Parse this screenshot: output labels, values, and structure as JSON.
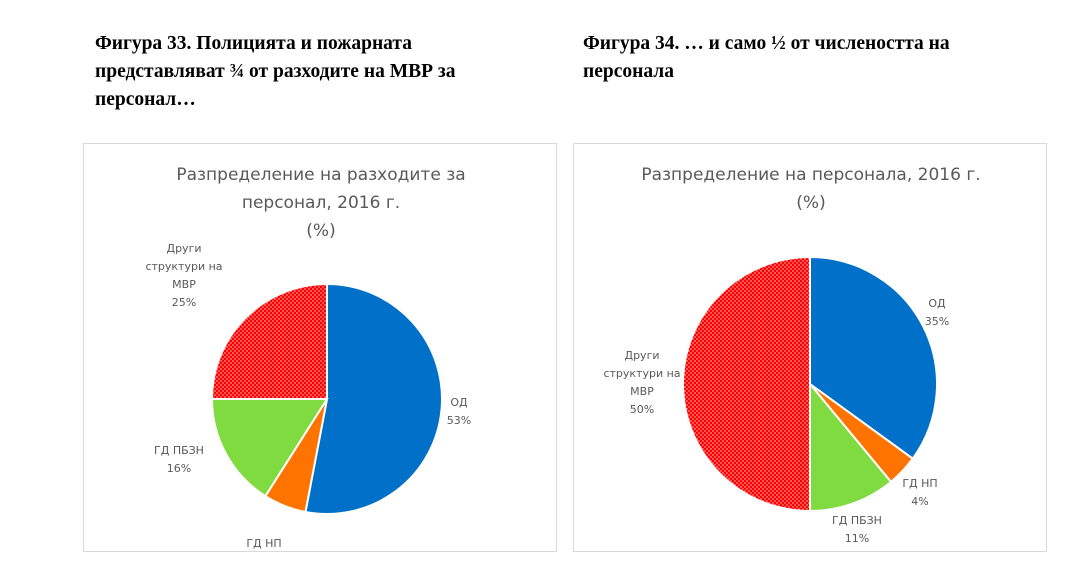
{
  "figures": [
    {
      "heading_lines": [
        "Фигура 33. Полицията и пожарната",
        "представляват ¾ от разходите на МВР за",
        "персонал…"
      ]
    },
    {
      "heading_lines": [
        "Фигура 34. … и само ½ от числеността на",
        "персонала"
      ]
    }
  ],
  "chart_data": [
    {
      "type": "pie",
      "title_lines": [
        "Разпределение на разходите за",
        "персонал, 2016 г.",
        "(%)"
      ],
      "unit": "%",
      "slices": [
        {
          "label_lines": [
            "ОД"
          ],
          "value": 53,
          "value_label": "53%",
          "color": "#0070C8"
        },
        {
          "label_lines": [
            "ГД НП"
          ],
          "value": 6,
          "value_label": "6%",
          "color": "#FF7300"
        },
        {
          "label_lines": [
            "ГД ПБЗН"
          ],
          "value": 16,
          "value_label": "16%",
          "color": "#7FDB40"
        },
        {
          "label_lines": [
            "Други",
            "структури на",
            "МВР"
          ],
          "value": 25,
          "value_label": "25%",
          "color": "#FF0000",
          "pattern": "dotted"
        }
      ]
    },
    {
      "type": "pie",
      "title_lines": [
        "Разпределение на персонала, 2016 г.",
        "(%)"
      ],
      "unit": "%",
      "slices": [
        {
          "label_lines": [
            "ОД"
          ],
          "value": 35,
          "value_label": "35%",
          "color": "#0070C8"
        },
        {
          "label_lines": [
            "ГД НП"
          ],
          "value": 4,
          "value_label": "4%",
          "color": "#FF7300"
        },
        {
          "label_lines": [
            "ГД ПБЗН"
          ],
          "value": 11,
          "value_label": "11%",
          "color": "#7FDB40"
        },
        {
          "label_lines": [
            "Други",
            "структури на",
            "МВР"
          ],
          "value": 50,
          "value_label": "50%",
          "color": "#FF0000",
          "pattern": "dotted"
        }
      ]
    }
  ]
}
